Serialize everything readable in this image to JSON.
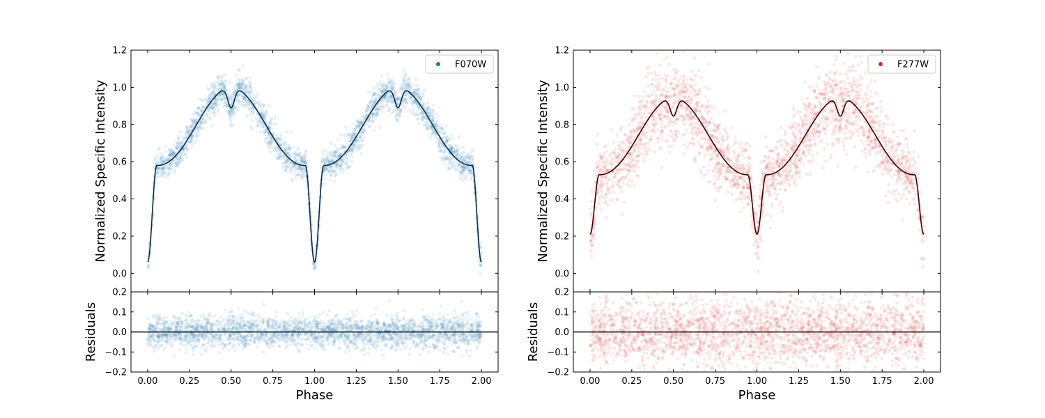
{
  "chart_data": [
    {
      "type": "scatter",
      "id": "left",
      "filter": "F070W",
      "color": "#1f77b4",
      "model_color": "#0b2d45",
      "xlabel": "Phase",
      "ylabel": "Normalized Specific Intensity",
      "residual_ylabel": "Residuals",
      "xlim": [
        -0.1,
        2.1
      ],
      "ylim": [
        -0.1,
        1.2
      ],
      "residual_ylim": [
        -0.2,
        0.2
      ],
      "xticks": [
        "0.00",
        "0.25",
        "0.50",
        "0.75",
        "1.00",
        "1.25",
        "1.50",
        "1.75",
        "2.00"
      ],
      "yticks": [
        "0.0",
        "0.2",
        "0.4",
        "0.6",
        "0.8",
        "1.0",
        "1.2"
      ],
      "residual_yticks": [
        "−0.2",
        "−0.1",
        "0.0",
        "0.1",
        "0.2"
      ],
      "eclipse_min": 0.06,
      "shoulder": 0.58,
      "peak": 1.0,
      "dip_depth": 0.11,
      "noise": 0.035,
      "residual_noise": 0.04,
      "legend": {
        "label": "F070W",
        "position": "top-right"
      }
    },
    {
      "type": "scatter",
      "id": "right",
      "filter": "F277W",
      "color": "#d62728",
      "model_color": "#3a0000",
      "xlabel": "Phase",
      "ylabel": "Normalized Specific Intensity",
      "residual_ylabel": "Residuals",
      "xlim": [
        -0.1,
        2.1
      ],
      "ylim": [
        -0.1,
        1.2
      ],
      "residual_ylim": [
        -0.2,
        0.2
      ],
      "xticks": [
        "0.00",
        "0.25",
        "0.50",
        "0.75",
        "1.00",
        "1.25",
        "1.50",
        "1.75",
        "2.00"
      ],
      "yticks": [
        "0.0",
        "0.2",
        "0.4",
        "0.6",
        "0.8",
        "1.0",
        "1.2"
      ],
      "residual_yticks": [
        "−0.2",
        "−0.1",
        "0.0",
        "0.1",
        "0.2"
      ],
      "eclipse_min": 0.21,
      "shoulder": 0.53,
      "peak": 0.945,
      "dip_depth": 0.1,
      "noise": 0.08,
      "residual_noise": 0.085,
      "legend": {
        "label": "F277W",
        "position": "top-right"
      }
    }
  ]
}
